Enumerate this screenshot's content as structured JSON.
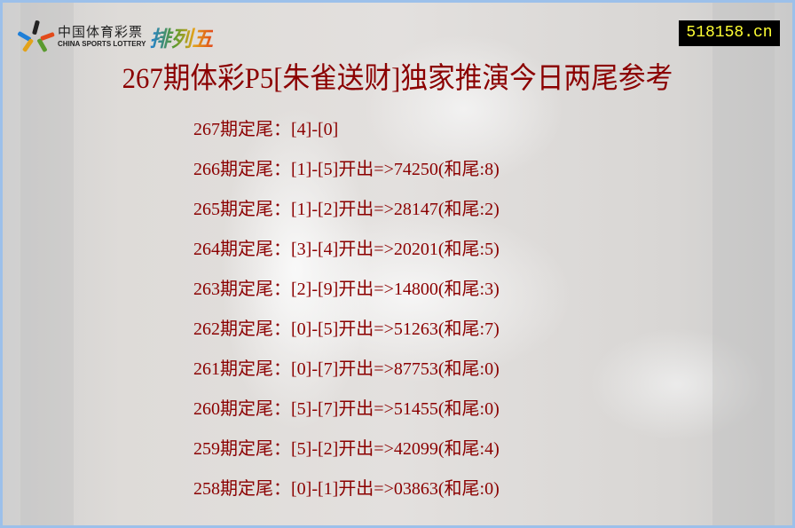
{
  "logo": {
    "cn": "中国体育彩票",
    "en": "CHINA SPORTS LOTTERY",
    "product": "排列五"
  },
  "site_badge": "518158.cn",
  "title": "267期体彩P5[朱雀送财]独家推演今日两尾参考",
  "labels": {
    "issue_suffix": "期定尾：",
    "draw_prefix": "开出=>",
    "sum_prefix": "(和尾:",
    "sum_suffix": ")"
  },
  "rows": [
    {
      "issue": "267",
      "tails": "[4]-[0]",
      "draw": "",
      "sum_tail": ""
    },
    {
      "issue": "266",
      "tails": "[1]-[5]",
      "draw": "74250",
      "sum_tail": "8"
    },
    {
      "issue": "265",
      "tails": "[1]-[2]",
      "draw": "28147",
      "sum_tail": "2"
    },
    {
      "issue": "264",
      "tails": "[3]-[4]",
      "draw": "20201",
      "sum_tail": "5"
    },
    {
      "issue": "263",
      "tails": "[2]-[9]",
      "draw": "14800",
      "sum_tail": "3"
    },
    {
      "issue": "262",
      "tails": "[0]-[5]",
      "draw": "51263",
      "sum_tail": "7"
    },
    {
      "issue": "261",
      "tails": "[0]-[7]",
      "draw": "87753",
      "sum_tail": "0"
    },
    {
      "issue": "260",
      "tails": "[5]-[7]",
      "draw": "51455",
      "sum_tail": "0"
    },
    {
      "issue": "259",
      "tails": "[5]-[2]",
      "draw": "42099",
      "sum_tail": "4"
    },
    {
      "issue": "258",
      "tails": "[0]-[1]",
      "draw": "03863",
      "sum_tail": "0"
    }
  ],
  "colors": {
    "text": "#8b0000",
    "border": "#9cc0ea",
    "badge_bg": "#000000",
    "badge_text": "#ffff33"
  }
}
